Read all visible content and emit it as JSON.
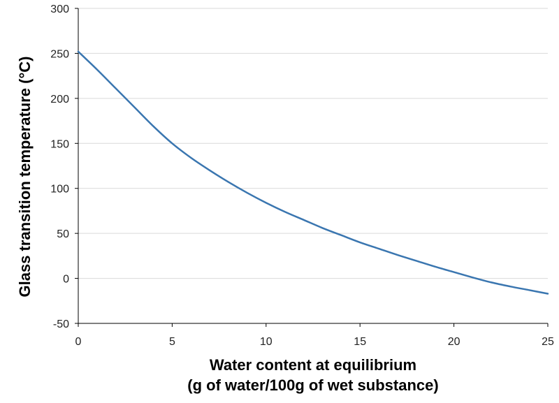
{
  "chart_data": {
    "type": "line",
    "title": "",
    "xlabel": "Water content at equilibrium",
    "xlabel_line2": "(g of water/100g of wet substance)",
    "ylabel": "Glass transition temperature (°C)",
    "xlim": [
      0,
      25
    ],
    "ylim": [
      -50,
      300
    ],
    "x_ticks": [
      "0",
      "5",
      "10",
      "15",
      "20",
      "25"
    ],
    "y_ticks": [
      "-50",
      "0",
      "50",
      "100",
      "150",
      "200",
      "250",
      "300"
    ],
    "grid": "horizontal",
    "legend": "none",
    "series": [
      {
        "color": "#3a76b0",
        "x": [
          0,
          1,
          2,
          3,
          4,
          5,
          6,
          7,
          8,
          9,
          10,
          11,
          12,
          13,
          14,
          15,
          16,
          17,
          18,
          19,
          20,
          21,
          22,
          23,
          24,
          25
        ],
        "y": [
          252,
          232,
          211,
          190,
          169,
          150,
          134,
          120,
          107,
          95,
          84,
          74,
          65,
          56,
          48,
          40,
          33,
          26,
          19.5,
          13,
          7,
          1,
          -4.5,
          -9,
          -13,
          -17
        ]
      }
    ]
  }
}
